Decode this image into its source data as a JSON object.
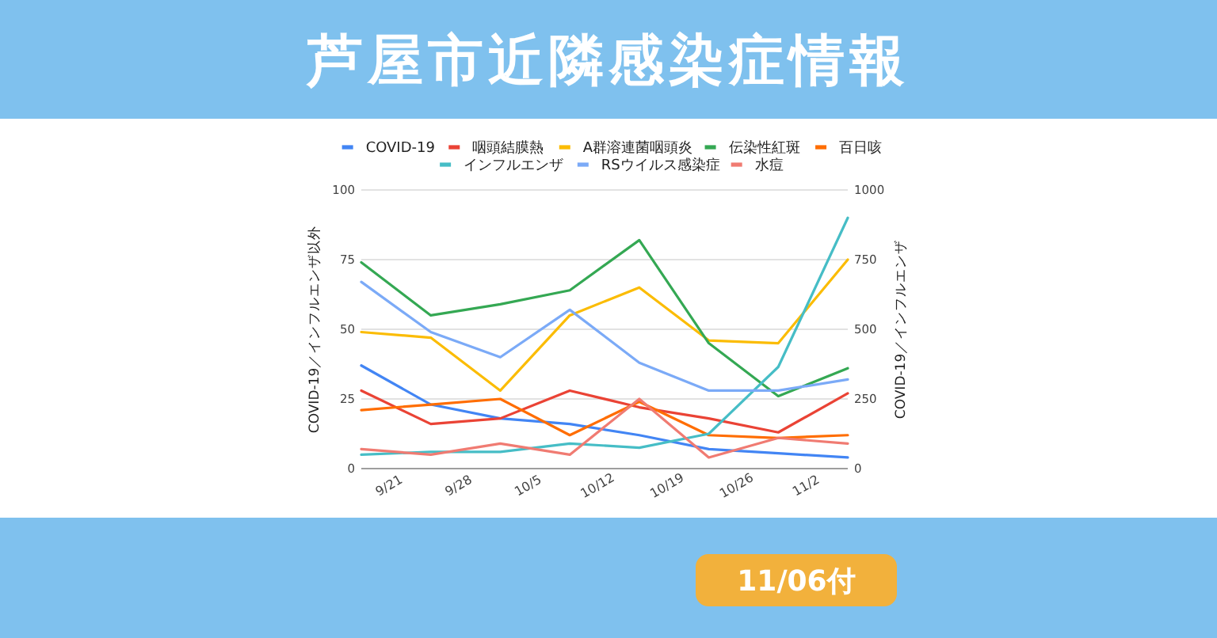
{
  "chart_data": {
    "type": "line",
    "title": "芦屋市近隣感染症情報",
    "ylabel": "COVID-19／インフルエンザ以外",
    "y2label": "COVID-19／インフルエンザ",
    "annotations": [
      "11/06付"
    ],
    "x": [
      "--09-18",
      "--09-25",
      "--10-02",
      "--10-09",
      "--10-16",
      "--10-23",
      "--10-30",
      "--11-06"
    ],
    "xlim": [
      "--09-18",
      "--11-06"
    ],
    "xticks": [
      {
        "value": "--09-21",
        "label": "9/21"
      },
      {
        "value": "--09-28",
        "label": "9/28"
      },
      {
        "value": "--10-05",
        "label": "10/5"
      },
      {
        "value": "--10-12",
        "label": "10/12"
      },
      {
        "value": "--10-19",
        "label": "10/19"
      },
      {
        "value": "--10-26",
        "label": "10/26"
      },
      {
        "value": "--11-02",
        "label": "11/2"
      }
    ],
    "ylim": [
      0,
      100
    ],
    "yticks": [
      0,
      25,
      50,
      75,
      100
    ],
    "y2lim": [
      0,
      1000
    ],
    "y2ticks": [
      0,
      250,
      500,
      750,
      1000
    ],
    "grid": "y",
    "legend": "top",
    "series": [
      {
        "name": "COVID-19",
        "color": "#4285f4",
        "axis": "y2",
        "values": [
          370,
          230,
          180,
          160,
          120,
          70,
          55,
          40
        ]
      },
      {
        "name": "咽頭結膜熱",
        "color": "#ea4335",
        "values": [
          28,
          16,
          18,
          28,
          22,
          18,
          13,
          27
        ]
      },
      {
        "name": "A群溶連菌咽頭炎",
        "color": "#fbbc04",
        "values": [
          49,
          47,
          28,
          55,
          65,
          46,
          45,
          75
        ]
      },
      {
        "name": "伝染性紅斑",
        "color": "#34a853",
        "values": [
          74,
          55,
          59,
          64,
          82,
          45,
          26,
          36
        ]
      },
      {
        "name": "百日咳",
        "color": "#ff6d01",
        "values": [
          21,
          23,
          25,
          12,
          24,
          12,
          11,
          12
        ]
      },
      {
        "name": "インフルエンザ",
        "color": "#46bdc6",
        "axis": "y2",
        "values": [
          50,
          60,
          60,
          90,
          75,
          125,
          365,
          900
        ]
      },
      {
        "name": "RSウイルス感染症",
        "color": "#7baaf7",
        "values": [
          67,
          49,
          40,
          57,
          38,
          28,
          28,
          32
        ]
      },
      {
        "name": "水痘",
        "color": "#f07b72",
        "values": [
          7,
          5,
          9,
          5,
          25,
          4,
          11,
          9
        ]
      }
    ]
  }
}
